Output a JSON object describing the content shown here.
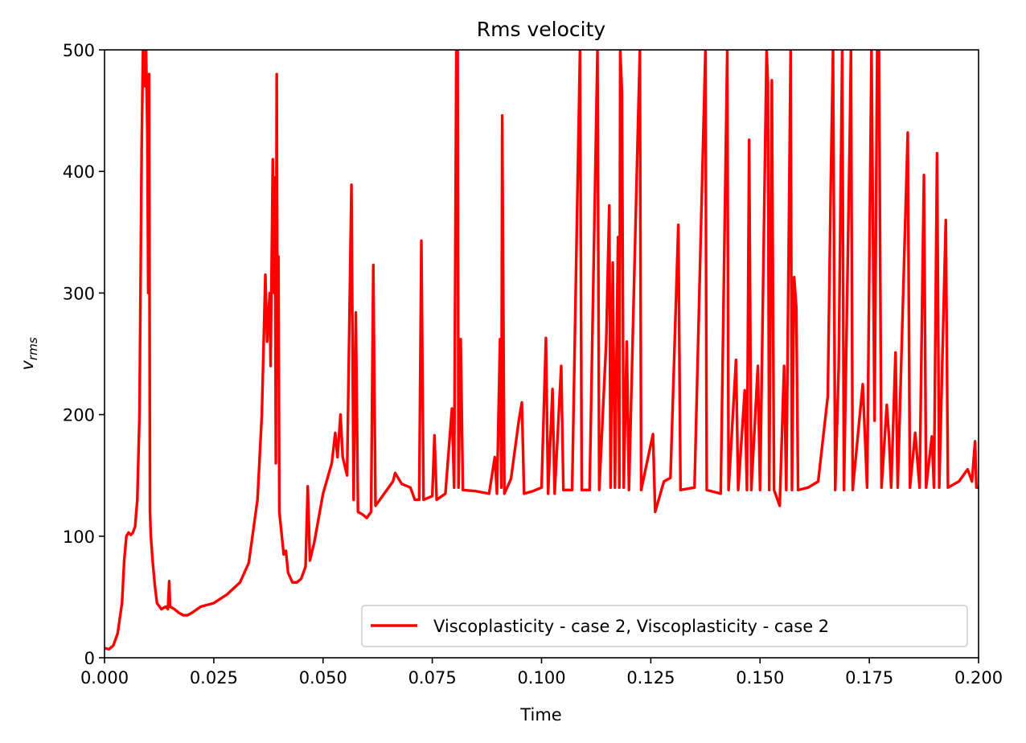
{
  "chart_data": {
    "type": "line",
    "title": "Rms velocity",
    "xlabel": "Time",
    "ylabel": "v",
    "ylabel_subscript": "rms",
    "xlim": [
      0.0,
      0.2
    ],
    "ylim": [
      0,
      500
    ],
    "x_ticks": [
      "0.000",
      "0.025",
      "0.050",
      "0.075",
      "0.100",
      "0.125",
      "0.150",
      "0.175",
      "0.200"
    ],
    "y_ticks": [
      "0",
      "100",
      "200",
      "300",
      "400",
      "500"
    ],
    "legend_position": "lower-right",
    "series": [
      {
        "name": "Viscoplasticity - case 2, Viscoplasticity - case 2",
        "color": "#ff0000",
        "points": [
          [
            0.0,
            8
          ],
          [
            0.001,
            7
          ],
          [
            0.002,
            10
          ],
          [
            0.003,
            20
          ],
          [
            0.004,
            45
          ],
          [
            0.0045,
            80
          ],
          [
            0.005,
            100
          ],
          [
            0.0055,
            103
          ],
          [
            0.006,
            101
          ],
          [
            0.0065,
            103
          ],
          [
            0.007,
            108
          ],
          [
            0.0075,
            130
          ],
          [
            0.008,
            200
          ],
          [
            0.0085,
            420
          ],
          [
            0.0088,
            500
          ],
          [
            0.009,
            500
          ],
          [
            0.0093,
            470
          ],
          [
            0.0095,
            500
          ],
          [
            0.0098,
            430
          ],
          [
            0.01,
            300
          ],
          [
            0.0102,
            480
          ],
          [
            0.0104,
            120
          ],
          [
            0.0106,
            100
          ],
          [
            0.011,
            80
          ],
          [
            0.0115,
            60
          ],
          [
            0.012,
            45
          ],
          [
            0.013,
            40
          ],
          [
            0.014,
            42
          ],
          [
            0.0145,
            40
          ],
          [
            0.0148,
            63
          ],
          [
            0.015,
            42
          ],
          [
            0.016,
            40
          ],
          [
            0.017,
            37
          ],
          [
            0.018,
            35
          ],
          [
            0.019,
            35
          ],
          [
            0.02,
            37
          ],
          [
            0.022,
            42
          ],
          [
            0.025,
            45
          ],
          [
            0.028,
            52
          ],
          [
            0.031,
            62
          ],
          [
            0.033,
            78
          ],
          [
            0.035,
            130
          ],
          [
            0.036,
            200
          ],
          [
            0.0368,
            315
          ],
          [
            0.0372,
            260
          ],
          [
            0.0378,
            300
          ],
          [
            0.038,
            240
          ],
          [
            0.0385,
            410
          ],
          [
            0.0388,
            300
          ],
          [
            0.039,
            395
          ],
          [
            0.0392,
            160
          ],
          [
            0.0394,
            480
          ],
          [
            0.0396,
            230
          ],
          [
            0.0398,
            330
          ],
          [
            0.04,
            120
          ],
          [
            0.041,
            85
          ],
          [
            0.0415,
            88
          ],
          [
            0.042,
            70
          ],
          [
            0.043,
            62
          ],
          [
            0.044,
            62
          ],
          [
            0.045,
            65
          ],
          [
            0.046,
            75
          ],
          [
            0.0465,
            141
          ],
          [
            0.047,
            80
          ],
          [
            0.048,
            95
          ],
          [
            0.05,
            135
          ],
          [
            0.052,
            160
          ],
          [
            0.0528,
            185
          ],
          [
            0.0533,
            165
          ],
          [
            0.054,
            200
          ],
          [
            0.0545,
            165
          ],
          [
            0.0555,
            150
          ],
          [
            0.0565,
            389
          ],
          [
            0.057,
            130
          ],
          [
            0.0575,
            284
          ],
          [
            0.058,
            120
          ],
          [
            0.059,
            118
          ],
          [
            0.06,
            115
          ],
          [
            0.061,
            120
          ],
          [
            0.0615,
            323
          ],
          [
            0.062,
            125
          ],
          [
            0.064,
            135
          ],
          [
            0.066,
            145
          ],
          [
            0.0665,
            152
          ],
          [
            0.068,
            143
          ],
          [
            0.07,
            140
          ],
          [
            0.071,
            130
          ],
          [
            0.072,
            130
          ],
          [
            0.0725,
            343
          ],
          [
            0.073,
            130
          ],
          [
            0.075,
            133
          ],
          [
            0.0755,
            183
          ],
          [
            0.076,
            130
          ],
          [
            0.078,
            135
          ],
          [
            0.0795,
            205
          ],
          [
            0.08,
            140
          ],
          [
            0.0805,
            500
          ],
          [
            0.0808,
            500
          ],
          [
            0.081,
            140
          ],
          [
            0.0815,
            262
          ],
          [
            0.082,
            138
          ],
          [
            0.085,
            137
          ],
          [
            0.088,
            135
          ],
          [
            0.0893,
            165
          ],
          [
            0.0898,
            135
          ],
          [
            0.0905,
            262
          ],
          [
            0.0908,
            140
          ],
          [
            0.091,
            446
          ],
          [
            0.0915,
            135
          ],
          [
            0.093,
            147
          ],
          [
            0.0948,
            195
          ],
          [
            0.0955,
            210
          ],
          [
            0.096,
            135
          ],
          [
            0.098,
            137
          ],
          [
            0.1,
            140
          ],
          [
            0.101,
            263
          ],
          [
            0.1015,
            135
          ],
          [
            0.1025,
            221
          ],
          [
            0.103,
            135
          ],
          [
            0.1045,
            240
          ],
          [
            0.105,
            138
          ],
          [
            0.107,
            138
          ],
          [
            0.1088,
            500
          ],
          [
            0.1092,
            138
          ],
          [
            0.111,
            138
          ],
          [
            0.1128,
            500
          ],
          [
            0.1132,
            138
          ],
          [
            0.1148,
            260
          ],
          [
            0.1155,
            372
          ],
          [
            0.1158,
            140
          ],
          [
            0.1163,
            325
          ],
          [
            0.1168,
            140
          ],
          [
            0.1175,
            346
          ],
          [
            0.1178,
            140
          ],
          [
            0.118,
            500
          ],
          [
            0.1184,
            465
          ],
          [
            0.1188,
            140
          ],
          [
            0.1195,
            260
          ],
          [
            0.12,
            138
          ],
          [
            0.1225,
            500
          ],
          [
            0.1228,
            138
          ],
          [
            0.1255,
            184
          ],
          [
            0.126,
            120
          ],
          [
            0.128,
            145
          ],
          [
            0.1295,
            148
          ],
          [
            0.1313,
            356
          ],
          [
            0.1318,
            138
          ],
          [
            0.135,
            140
          ],
          [
            0.1375,
            500
          ],
          [
            0.1378,
            138
          ],
          [
            0.141,
            135
          ],
          [
            0.1425,
            500
          ],
          [
            0.1428,
            138
          ],
          [
            0.1445,
            245
          ],
          [
            0.145,
            138
          ],
          [
            0.1465,
            220
          ],
          [
            0.147,
            138
          ],
          [
            0.1475,
            426
          ],
          [
            0.148,
            138
          ],
          [
            0.1495,
            240
          ],
          [
            0.15,
            138
          ],
          [
            0.1515,
            500
          ],
          [
            0.1518,
            472
          ],
          [
            0.1521,
            138
          ],
          [
            0.1527,
            475
          ],
          [
            0.1532,
            138
          ],
          [
            0.1545,
            125
          ],
          [
            0.1555,
            240
          ],
          [
            0.156,
            138
          ],
          [
            0.157,
            500
          ],
          [
            0.1573,
            138
          ],
          [
            0.1578,
            313
          ],
          [
            0.1583,
            288
          ],
          [
            0.1587,
            138
          ],
          [
            0.161,
            140
          ],
          [
            0.1633,
            145
          ],
          [
            0.1655,
            215
          ],
          [
            0.1662,
            393
          ],
          [
            0.1667,
            500
          ],
          [
            0.1672,
            138
          ],
          [
            0.168,
            240
          ],
          [
            0.1688,
            500
          ],
          [
            0.1692,
            138
          ],
          [
            0.1705,
            422
          ],
          [
            0.1708,
            500
          ],
          [
            0.1712,
            138
          ],
          [
            0.1735,
            225
          ],
          [
            0.1745,
            140
          ],
          [
            0.1755,
            500
          ],
          [
            0.1762,
            195
          ],
          [
            0.1768,
            500
          ],
          [
            0.1772,
            500
          ],
          [
            0.1778,
            140
          ],
          [
            0.179,
            208
          ],
          [
            0.1795,
            182
          ],
          [
            0.18,
            140
          ],
          [
            0.181,
            251
          ],
          [
            0.1815,
            140
          ],
          [
            0.1838,
            432
          ],
          [
            0.1843,
            140
          ],
          [
            0.1855,
            185
          ],
          [
            0.1865,
            140
          ],
          [
            0.1875,
            397
          ],
          [
            0.188,
            140
          ],
          [
            0.1893,
            182
          ],
          [
            0.1898,
            140
          ],
          [
            0.1905,
            415
          ],
          [
            0.191,
            140
          ],
          [
            0.1925,
            360
          ],
          [
            0.193,
            140
          ],
          [
            0.1955,
            145
          ],
          [
            0.1975,
            155
          ],
          [
            0.1985,
            145
          ],
          [
            0.1992,
            178
          ],
          [
            0.1995,
            140
          ],
          [
            0.2,
            140
          ]
        ]
      }
    ]
  }
}
